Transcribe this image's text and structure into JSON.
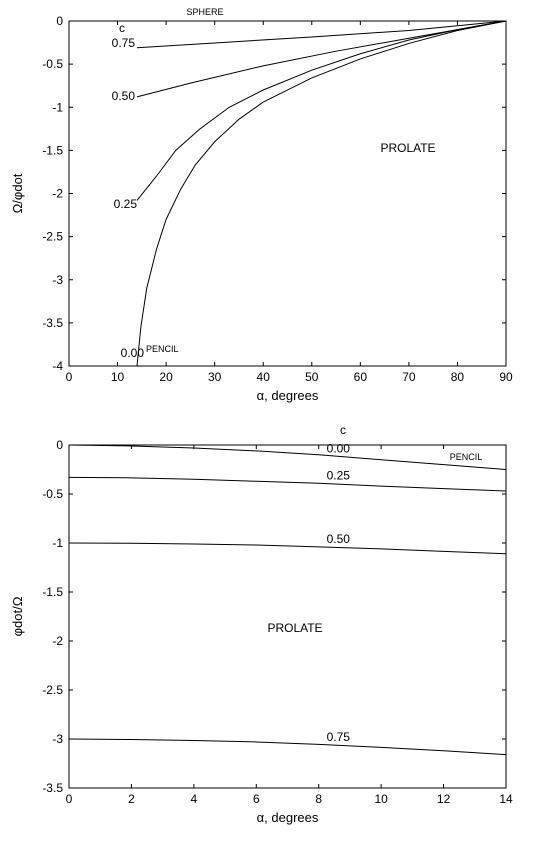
{
  "chart_data": [
    {
      "type": "line",
      "title": "",
      "xlabel": "α, degrees",
      "ylabel": "Ω/φdot",
      "xlim": [
        0,
        90
      ],
      "ylim": [
        -4,
        0
      ],
      "xticks": [
        "0",
        "10",
        "20",
        "30",
        "40",
        "50",
        "60",
        "70",
        "80",
        "90"
      ],
      "yticks": [
        "0",
        "-0.5",
        "-1",
        "-1.5",
        "-2",
        "-2.5",
        "-3",
        "-3.5",
        "-4"
      ],
      "grid": false,
      "legend": "none",
      "annotations": {
        "top": "SPHERE",
        "param": "c",
        "region": "PROLATE",
        "bottom": "PENCIL"
      },
      "series": [
        {
          "label": "0.75",
          "x": [
            14,
            30,
            50,
            70,
            90
          ],
          "y": [
            -0.31,
            -0.255,
            -0.185,
            -0.11,
            0
          ]
        },
        {
          "label": "0.50",
          "x": [
            14,
            25,
            40,
            55,
            70,
            80,
            90
          ],
          "y": [
            -0.88,
            -0.72,
            -0.52,
            -0.35,
            -0.2,
            -0.1,
            0
          ]
        },
        {
          "label": "0.25",
          "x": [
            14,
            18,
            22,
            27,
            33,
            40,
            50,
            60,
            70,
            80,
            90
          ],
          "y": [
            -2.08,
            -1.8,
            -1.5,
            -1.25,
            -1.0,
            -0.8,
            -0.57,
            -0.38,
            -0.22,
            -0.1,
            0
          ]
        },
        {
          "label": "0.00",
          "x": [
            14,
            14.8,
            16,
            18,
            20,
            23,
            26,
            30,
            35,
            40,
            50,
            60,
            70,
            80,
            90
          ],
          "y": [
            -4.0,
            -3.55,
            -3.1,
            -2.65,
            -2.3,
            -1.95,
            -1.67,
            -1.4,
            -1.14,
            -0.94,
            -0.66,
            -0.44,
            -0.26,
            -0.11,
            0
          ]
        }
      ]
    },
    {
      "type": "line",
      "title": "",
      "xlabel": "α, degrees",
      "ylabel": "φdot/Ω",
      "xlim": [
        0,
        14
      ],
      "ylim": [
        -3.5,
        0
      ],
      "xticks": [
        "0",
        "2",
        "4",
        "6",
        "8",
        "10",
        "12",
        "14"
      ],
      "yticks": [
        "0",
        "-0.5",
        "-1",
        "-1.5",
        "-2",
        "-2.5",
        "-3",
        "-3.5"
      ],
      "grid": false,
      "legend": "none",
      "annotations": {
        "param": "c",
        "region": "PROLATE",
        "right": "PENCIL"
      },
      "series": [
        {
          "label": "0.00",
          "x": [
            0,
            2,
            4,
            6,
            8,
            10,
            12,
            14
          ],
          "y": [
            0,
            -0.01,
            -0.03,
            -0.06,
            -0.1,
            -0.15,
            -0.2,
            -0.25
          ]
        },
        {
          "label": "0.25",
          "x": [
            0,
            2,
            4,
            6,
            8,
            10,
            12,
            14
          ],
          "y": [
            -0.33,
            -0.335,
            -0.35,
            -0.37,
            -0.39,
            -0.42,
            -0.445,
            -0.47
          ]
        },
        {
          "label": "0.50",
          "x": [
            0,
            2,
            4,
            6,
            8,
            10,
            12,
            14
          ],
          "y": [
            -1.0,
            -1.003,
            -1.01,
            -1.02,
            -1.04,
            -1.06,
            -1.085,
            -1.11
          ]
        },
        {
          "label": "0.75",
          "x": [
            0,
            2,
            4,
            6,
            8,
            10,
            12,
            14
          ],
          "y": [
            -3.0,
            -3.005,
            -3.015,
            -3.03,
            -3.055,
            -3.085,
            -3.12,
            -3.16
          ]
        }
      ]
    }
  ]
}
